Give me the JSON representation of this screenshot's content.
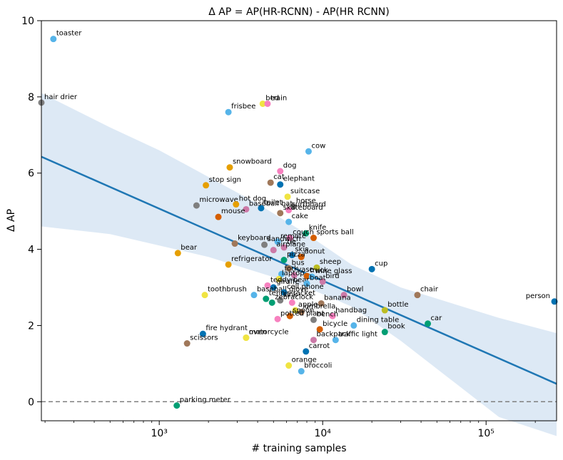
{
  "chart_data": {
    "type": "scatter",
    "title": "Δ AP = AP(HR-RCNN) - AP(HR RCNN)",
    "xlabel": "# training samples",
    "ylabel": "Δ AP",
    "x_scale": "log",
    "xlim": [
      190,
      270000
    ],
    "ylim": [
      -0.5,
      10
    ],
    "x_ticks": [
      {
        "value": 1000,
        "label": "10³"
      },
      {
        "value": 10000,
        "label": "10⁴"
      },
      {
        "value": 100000,
        "label": "10⁵"
      }
    ],
    "y_ticks": [
      0,
      2,
      4,
      6,
      8,
      10
    ],
    "grid": false,
    "reference_line": {
      "y": 0,
      "style": "dashed",
      "color": "#808080"
    },
    "regression": {
      "x_start": 190,
      "y_start": 6.43,
      "x_end": 270000,
      "y_end": 0.47,
      "color": "#1f77b4"
    },
    "confidence_band": {
      "color": "#c6dbef",
      "upper": [
        [
          190,
          8.1
        ],
        [
          500,
          7.2
        ],
        [
          1000,
          6.6
        ],
        [
          2000,
          5.9
        ],
        [
          4000,
          5.2
        ],
        [
          8000,
          4.4
        ],
        [
          15000,
          3.6
        ],
        [
          30000,
          3.0
        ],
        [
          60000,
          2.6
        ],
        [
          120000,
          2.2
        ],
        [
          270000,
          1.8
        ]
      ],
      "lower": [
        [
          190,
          4.6
        ],
        [
          500,
          4.4
        ],
        [
          1000,
          4.1
        ],
        [
          2000,
          3.8
        ],
        [
          4000,
          3.4
        ],
        [
          8000,
          3.0
        ],
        [
          15000,
          2.5
        ],
        [
          30000,
          1.6
        ],
        [
          60000,
          0.6
        ],
        [
          120000,
          -0.4
        ],
        [
          270000,
          -0.9
        ]
      ]
    },
    "points": [
      {
        "label": "toaster",
        "x": 225,
        "y": 9.52,
        "color": "#56b4e9"
      },
      {
        "label": "hair drier",
        "x": 190,
        "y": 7.85,
        "color": "#7f7f7f"
      },
      {
        "label": "bed",
        "x": 4300,
        "y": 7.82,
        "color": "#f0e442"
      },
      {
        "label": "train",
        "x": 4600,
        "y": 7.82,
        "color": "#f781bf"
      },
      {
        "label": "frisbee",
        "x": 2650,
        "y": 7.6,
        "color": "#56b4e9"
      },
      {
        "label": "cow",
        "x": 8200,
        "y": 6.57,
        "color": "#56b4e9"
      },
      {
        "label": "snowboard",
        "x": 2700,
        "y": 6.15,
        "color": "#e69f00"
      },
      {
        "label": "dog",
        "x": 5500,
        "y": 6.05,
        "color": "#f781bf"
      },
      {
        "label": "cat",
        "x": 4800,
        "y": 5.75,
        "color": "#a0785a"
      },
      {
        "label": "elephant",
        "x": 5500,
        "y": 5.7,
        "color": "#0072b2"
      },
      {
        "label": "stop sign",
        "x": 1930,
        "y": 5.68,
        "color": "#e69f00"
      },
      {
        "label": "suitcase",
        "x": 6100,
        "y": 5.38,
        "color": "#f0e442"
      },
      {
        "label": "microwave",
        "x": 1690,
        "y": 5.15,
        "color": "#7f7f7f"
      },
      {
        "label": "hot dog",
        "x": 2950,
        "y": 5.18,
        "color": "#e69f00"
      },
      {
        "label": "horse",
        "x": 6600,
        "y": 5.12,
        "color": "#7f7f7f"
      },
      {
        "label": "toilet",
        "x": 4200,
        "y": 5.08,
        "color": "#0072b2"
      },
      {
        "label": "baseball bat",
        "x": 3400,
        "y": 5.05,
        "color": "#cc79a7"
      },
      {
        "label": "surfboard",
        "x": 6200,
        "y": 5.03,
        "color": "#f781bf"
      },
      {
        "label": "mouse",
        "x": 2300,
        "y": 4.85,
        "color": "#d55e00"
      },
      {
        "label": "skateboard",
        "x": 5500,
        "y": 4.95,
        "color": "#a0785a"
      },
      {
        "label": "cake",
        "x": 6200,
        "y": 4.72,
        "color": "#56b4e9"
      },
      {
        "label": "knife",
        "x": 7900,
        "y": 4.42,
        "color": "#009e73"
      },
      {
        "label": "couch",
        "x": 6300,
        "y": 4.3,
        "color": "#f781bf"
      },
      {
        "label": "keyboard",
        "x": 2900,
        "y": 4.15,
        "color": "#a0785a"
      },
      {
        "label": "sports ball",
        "x": 8800,
        "y": 4.3,
        "color": "#d55e00"
      },
      {
        "label": "remote",
        "x": 5300,
        "y": 4.2,
        "color": "#56b4e9"
      },
      {
        "label": "sandwich",
        "x": 4400,
        "y": 4.12,
        "color": "#7f7f7f"
      },
      {
        "label": "tie",
        "x": 5800,
        "y": 4.05,
        "color": "#cc79a7"
      },
      {
        "label": "airplane",
        "x": 5000,
        "y": 3.98,
        "color": "#cc79a7"
      },
      {
        "label": "bear",
        "x": 1300,
        "y": 3.9,
        "color": "#e69f00"
      },
      {
        "label": "skis",
        "x": 6500,
        "y": 3.85,
        "color": "#0072b2"
      },
      {
        "label": "donut",
        "x": 7400,
        "y": 3.8,
        "color": "#d55e00"
      },
      {
        "label": "pizza",
        "x": 5800,
        "y": 3.72,
        "color": "#009e73"
      },
      {
        "label": "refrigerator",
        "x": 2650,
        "y": 3.6,
        "color": "#e69f00"
      },
      {
        "label": "cup",
        "x": 20000,
        "y": 3.48,
        "color": "#0072b2"
      },
      {
        "label": "sheep",
        "x": 9200,
        "y": 3.52,
        "color": "#bcbd22"
      },
      {
        "label": "bus",
        "x": 6200,
        "y": 3.5,
        "color": "#a0785a"
      },
      {
        "label": "fork",
        "x": 5600,
        "y": 3.35,
        "color": "#56b4e9"
      },
      {
        "label": "vase",
        "x": 6700,
        "y": 3.32,
        "color": "#cc79a7"
      },
      {
        "label": "truck",
        "x": 8000,
        "y": 3.3,
        "color": "#d55e00"
      },
      {
        "label": "wine glass",
        "x": 8600,
        "y": 3.28,
        "color": "#56b4e9"
      },
      {
        "label": "laptop",
        "x": 5400,
        "y": 3.22,
        "color": "#f0e442"
      },
      {
        "label": "bird",
        "x": 10000,
        "y": 3.15,
        "color": "#cc79a7"
      },
      {
        "label": "teddy bear",
        "x": 4600,
        "y": 3.05,
        "color": "#f781bf"
      },
      {
        "label": "giraffe",
        "x": 5000,
        "y": 3.0,
        "color": "#0072b2"
      },
      {
        "label": "boat",
        "x": 8000,
        "y": 3.1,
        "color": "#56b4e9"
      },
      {
        "label": "chair",
        "x": 38000,
        "y": 2.8,
        "color": "#a0785a"
      },
      {
        "label": "bowl",
        "x": 13500,
        "y": 2.8,
        "color": "#cc79a7"
      },
      {
        "label": "baseball glove",
        "x": 3800,
        "y": 2.8,
        "color": "#56b4e9"
      },
      {
        "label": "toothbrush",
        "x": 1900,
        "y": 2.8,
        "color": "#f0e442"
      },
      {
        "label": "person",
        "x": 262000,
        "y": 2.63,
        "color": "#0072b2"
      },
      {
        "label": "cell phone",
        "x": 5800,
        "y": 2.87,
        "color": "#0072b2"
      },
      {
        "label": "tennis racket",
        "x": 4500,
        "y": 2.7,
        "color": "#009e73"
      },
      {
        "label": "sink",
        "x": 5500,
        "y": 2.66,
        "color": "#7f7f7f"
      },
      {
        "label": "clock",
        "x": 6500,
        "y": 2.6,
        "color": "#f781bf"
      },
      {
        "label": "banana",
        "x": 9800,
        "y": 2.58,
        "color": "#a0785a"
      },
      {
        "label": "zebra",
        "x": 4900,
        "y": 2.6,
        "color": "#009e73"
      },
      {
        "label": "bottle",
        "x": 24000,
        "y": 2.4,
        "color": "#bcbd22"
      },
      {
        "label": "apple",
        "x": 6800,
        "y": 2.4,
        "color": "#f0e442"
      },
      {
        "label": "umbrella",
        "x": 7400,
        "y": 2.35,
        "color": "#a0785a"
      },
      {
        "label": "spoon",
        "x": 6300,
        "y": 2.25,
        "color": "#d55e00"
      },
      {
        "label": "handbag",
        "x": 11500,
        "y": 2.25,
        "color": "#f781bf"
      },
      {
        "label": "potted plant",
        "x": 5300,
        "y": 2.17,
        "color": "#f781bf"
      },
      {
        "label": "car",
        "x": 44000,
        "y": 2.05,
        "color": "#009e73"
      },
      {
        "label": "book",
        "x": 24000,
        "y": 1.83,
        "color": "#009e73"
      },
      {
        "label": "bench",
        "x": 8800,
        "y": 2.15,
        "color": "#7f7f7f"
      },
      {
        "label": "fire hydrant",
        "x": 1850,
        "y": 1.78,
        "color": "#0072b2"
      },
      {
        "label": "bicycle",
        "x": 9600,
        "y": 1.9,
        "color": "#d55e00"
      },
      {
        "label": "dining table",
        "x": 15500,
        "y": 2.0,
        "color": "#56b4e9"
      },
      {
        "label": "motorcycle",
        "x": 3400,
        "y": 1.68,
        "color": "#f0e442"
      },
      {
        "label": "oven",
        "x": 3400,
        "y": 1.68,
        "color": "#f0e442"
      },
      {
        "label": "traffic light",
        "x": 12000,
        "y": 1.62,
        "color": "#56b4e9"
      },
      {
        "label": "backpack",
        "x": 8800,
        "y": 1.62,
        "color": "#cc79a7"
      },
      {
        "label": "scissors",
        "x": 1480,
        "y": 1.53,
        "color": "#a0785a"
      },
      {
        "label": "carrot",
        "x": 7900,
        "y": 1.32,
        "color": "#0072b2"
      },
      {
        "label": "orange",
        "x": 6200,
        "y": 0.95,
        "color": "#f0e442"
      },
      {
        "label": "broccoli",
        "x": 7400,
        "y": 0.8,
        "color": "#56b4e9"
      },
      {
        "label": "parking meter",
        "x": 1280,
        "y": -0.1,
        "color": "#009e73"
      }
    ]
  }
}
